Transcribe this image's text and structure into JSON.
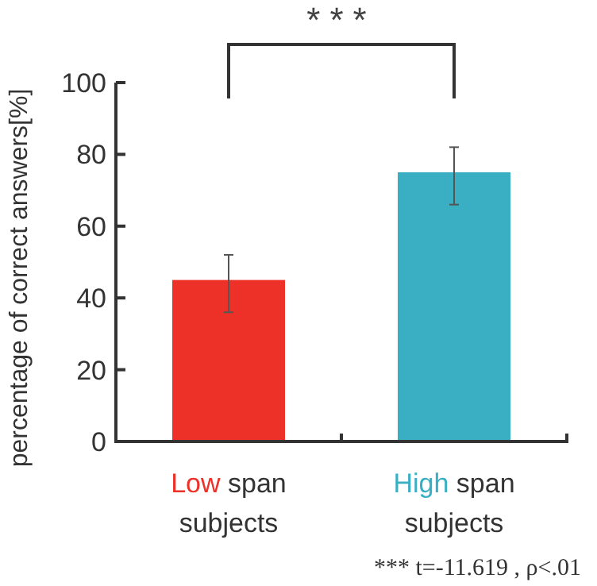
{
  "chart_data": {
    "type": "bar",
    "ylabel": "percentage of correct answers[%]",
    "categories": [
      "Low span subjects",
      "High span subjects"
    ],
    "values": [
      45,
      75
    ],
    "colors": [
      "#ee3128",
      "#3aaec2"
    ],
    "errors": [
      [
        36,
        52
      ],
      [
        66,
        82
      ]
    ],
    "ylim": [
      0,
      100
    ],
    "yticks": [
      0,
      20,
      40,
      60,
      80,
      100
    ],
    "grid": false,
    "annotations": [
      "***",
      "*** t=-11.619 , ρ<.01"
    ]
  }
}
